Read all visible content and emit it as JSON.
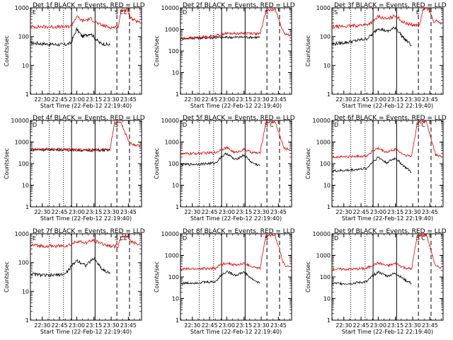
{
  "chart_data": [
    {
      "type": "line",
      "title": "Det 1f BLACK = Events, RED = LLD",
      "xlabel": "Start Time (22-Feb-12 22:19:40)",
      "ylabel": "Counts/sec",
      "ylim": [
        1,
        1000
      ],
      "yscale": "log",
      "x_ticks": [
        "22:30",
        "22:45",
        "23:00",
        "23:15",
        "23:30",
        "23:45"
      ],
      "annotations": [
        "E",
        "S",
        "E",
        "E"
      ],
      "series": [
        {
          "color": "#000000",
          "x": [
            "22:20",
            "22:35",
            "22:50",
            "22:55",
            "23:00",
            "23:05",
            "23:12",
            "23:20",
            "23:29"
          ],
          "y": [
            60,
            55,
            52,
            60,
            180,
            100,
            130,
            60,
            50
          ],
          "values": [
            60,
            55,
            52,
            60,
            180,
            100,
            130,
            60,
            50
          ]
        },
        {
          "color": "#e00000",
          "x": [
            "22:20",
            "22:35",
            "22:50",
            "22:55",
            "23:00",
            "23:05",
            "23:12",
            "23:20",
            "23:29",
            "23:36",
            "23:39",
            "23:44",
            "23:48",
            "23:55"
          ],
          "y": [
            220,
            220,
            215,
            230,
            500,
            350,
            420,
            260,
            210,
            210,
            850,
            850,
            400,
            300
          ],
          "values": [
            220,
            220,
            215,
            230,
            500,
            350,
            420,
            260,
            210,
            210,
            850,
            850,
            400,
            300
          ]
        }
      ]
    },
    {
      "type": "line",
      "title": "Det 2f BLACK = Events, RED = LLD",
      "xlabel": "Start Time (22-Feb-12 22:19:40)",
      "ylabel": "Counts/sec",
      "ylim": [
        1,
        10000
      ],
      "yscale": "log",
      "x_ticks": [
        "22:30",
        "22:45",
        "23:00",
        "23:15",
        "23:30",
        "23:45"
      ],
      "annotations": [
        "D",
        "S"
      ],
      "series": [
        {
          "color": "#000000",
          "x": [
            "22:20",
            "22:35",
            "22:50",
            "23:00",
            "23:15",
            "23:29"
          ],
          "y": [
            380,
            400,
            420,
            430,
            440,
            430
          ],
          "values": [
            380,
            400,
            420,
            430,
            440,
            430
          ]
        },
        {
          "color": "#e00000",
          "x": [
            "22:20",
            "22:35",
            "22:50",
            "22:58",
            "23:10",
            "23:20",
            "23:29",
            "23:34",
            "23:42",
            "23:50",
            "23:55"
          ],
          "y": [
            380,
            420,
            500,
            650,
            650,
            680,
            600,
            7000,
            9000,
            600,
            550
          ],
          "values": [
            380,
            420,
            500,
            650,
            650,
            680,
            600,
            7000,
            9000,
            600,
            550
          ]
        }
      ]
    },
    {
      "type": "line",
      "title": "Det 3f BLACK = Events, RED = LLD",
      "xlabel": "Start Time (22-Feb-12 22:19:40)",
      "ylabel": "Counts/sec",
      "ylim": [
        1,
        1000
      ],
      "yscale": "log",
      "x_ticks": [
        "22:30",
        "22:45",
        "23:00",
        "23:15",
        "23:30",
        "23:45"
      ],
      "annotations": [
        "S",
        "E"
      ],
      "series": [
        {
          "color": "#000000",
          "x": [
            "22:20",
            "22:35",
            "22:50",
            "22:55",
            "23:00",
            "23:08",
            "23:15",
            "23:22",
            "23:29"
          ],
          "y": [
            55,
            65,
            85,
            120,
            200,
            150,
            210,
            90,
            50
          ],
          "values": [
            55,
            65,
            85,
            120,
            200,
            150,
            210,
            90,
            50
          ]
        },
        {
          "color": "#e00000",
          "x": [
            "22:20",
            "22:35",
            "22:50",
            "22:55",
            "23:00",
            "23:08",
            "23:15",
            "23:22",
            "23:29",
            "23:36",
            "23:39",
            "23:44",
            "23:48",
            "23:55"
          ],
          "y": [
            220,
            230,
            260,
            320,
            500,
            400,
            550,
            310,
            260,
            240,
            900,
            900,
            350,
            300
          ],
          "values": [
            220,
            230,
            260,
            320,
            500,
            400,
            550,
            310,
            260,
            240,
            900,
            900,
            350,
            300
          ]
        }
      ]
    },
    {
      "type": "line",
      "title": "Det 4f BLACK = Events, RED = LLD",
      "xlabel": "Start Time (22-Feb-12 22:19:40)",
      "ylabel": "Counts/sec",
      "ylim": [
        1,
        10000
      ],
      "yscale": "log",
      "x_ticks": [
        "22:30",
        "22:45",
        "23:00",
        "23:15",
        "23:30",
        "23:45"
      ],
      "annotations": [
        "D",
        "S"
      ],
      "series": [
        {
          "color": "#000000",
          "x": [
            "22:20",
            "22:40",
            "23:00",
            "23:15",
            "23:29"
          ],
          "y": [
            430,
            450,
            420,
            410,
            420
          ],
          "values": [
            430,
            450,
            420,
            410,
            420
          ]
        },
        {
          "color": "#e00000",
          "x": [
            "22:20",
            "22:40",
            "23:00",
            "23:15",
            "23:29",
            "23:33",
            "23:38",
            "23:46",
            "23:50",
            "23:55"
          ],
          "y": [
            460,
            470,
            450,
            440,
            450,
            8000,
            9000,
            900,
            700,
            650
          ],
          "values": [
            460,
            470,
            450,
            440,
            450,
            8000,
            9000,
            900,
            700,
            650
          ]
        }
      ]
    },
    {
      "type": "line",
      "title": "Det 5f BLACK = Events, RED = LLD",
      "xlabel": "Start Time (22-Feb-12 22:19:40)",
      "ylabel": "Counts/sec",
      "ylim": [
        1,
        10000
      ],
      "yscale": "log",
      "x_ticks": [
        "22:30",
        "22:45",
        "23:00",
        "23:15",
        "23:30",
        "23:45"
      ],
      "annotations": [
        "D",
        "S",
        "C"
      ],
      "series": [
        {
          "color": "#000000",
          "x": [
            "22:20",
            "22:35",
            "22:50",
            "22:55",
            "23:00",
            "23:07",
            "23:15",
            "23:22",
            "23:29"
          ],
          "y": [
            90,
            95,
            105,
            200,
            300,
            150,
            250,
            110,
            80
          ],
          "values": [
            90,
            95,
            105,
            200,
            300,
            150,
            250,
            110,
            80
          ]
        },
        {
          "color": "#e00000",
          "x": [
            "22:20",
            "22:35",
            "22:50",
            "22:55",
            "23:00",
            "23:07",
            "23:15",
            "23:22",
            "23:29",
            "23:34",
            "23:42",
            "23:50",
            "23:55"
          ],
          "y": [
            280,
            300,
            320,
            450,
            550,
            320,
            450,
            330,
            300,
            8000,
            9000,
            500,
            450
          ],
          "values": [
            280,
            300,
            320,
            450,
            550,
            320,
            450,
            330,
            300,
            8000,
            9000,
            500,
            450
          ]
        }
      ]
    },
    {
      "type": "line",
      "title": "Det 6f BLACK = Events, RED = LLD",
      "xlabel": "Start Time (22-Feb-12 22:19:40)",
      "ylabel": "Counts/sec",
      "ylim": [
        1,
        10000
      ],
      "yscale": "log",
      "x_ticks": [
        "22:30",
        "22:45",
        "23:00",
        "23:15",
        "23:30",
        "23:45"
      ],
      "annotations": [
        "D",
        "S",
        "C"
      ],
      "series": [
        {
          "color": "#000000",
          "x": [
            "22:20",
            "22:35",
            "22:50",
            "22:55",
            "23:00",
            "23:07",
            "23:15",
            "23:22",
            "23:29"
          ],
          "y": [
            45,
            50,
            60,
            120,
            200,
            110,
            180,
            80,
            40
          ],
          "values": [
            45,
            50,
            60,
            120,
            200,
            110,
            180,
            80,
            40
          ]
        },
        {
          "color": "#e00000",
          "x": [
            "22:20",
            "22:35",
            "22:50",
            "22:55",
            "23:00",
            "23:07",
            "23:15",
            "23:22",
            "23:29",
            "23:34",
            "23:42",
            "23:50",
            "23:55"
          ],
          "y": [
            200,
            210,
            230,
            380,
            500,
            330,
            460,
            260,
            210,
            8000,
            9000,
            250,
            220
          ],
          "values": [
            200,
            210,
            230,
            380,
            500,
            330,
            460,
            260,
            210,
            8000,
            9000,
            250,
            220
          ]
        }
      ]
    },
    {
      "type": "line",
      "title": "Det 7f BLACK = Events, RED = LLD",
      "xlabel": "Start Time (22-Feb-12 22:19:40)",
      "ylabel": "Counts/sec",
      "ylim": [
        1,
        1000
      ],
      "yscale": "log",
      "x_ticks": [
        "22:30",
        "22:45",
        "23:00",
        "23:15",
        "23:30",
        "23:45"
      ],
      "annotations": [
        "E",
        "S",
        "C",
        "E"
      ],
      "series": [
        {
          "color": "#000000",
          "x": [
            "22:20",
            "22:35",
            "22:50",
            "22:55",
            "23:00",
            "23:08",
            "23:15",
            "23:22",
            "23:29"
          ],
          "y": [
            40,
            35,
            40,
            70,
            120,
            80,
            140,
            60,
            40
          ],
          "values": [
            40,
            35,
            40,
            70,
            120,
            80,
            140,
            60,
            40
          ]
        },
        {
          "color": "#e00000",
          "x": [
            "22:20",
            "22:35",
            "22:50",
            "22:55",
            "23:00",
            "23:08",
            "23:15",
            "23:22",
            "23:29",
            "23:36",
            "23:39",
            "23:44",
            "23:48",
            "23:55"
          ],
          "y": [
            400,
            370,
            380,
            420,
            550,
            480,
            600,
            450,
            380,
            360,
            800,
            850,
            500,
            450
          ],
          "values": [
            400,
            370,
            380,
            420,
            550,
            480,
            600,
            450,
            380,
            360,
            800,
            850,
            500,
            450
          ]
        }
      ]
    },
    {
      "type": "line",
      "title": "Det 8f BLACK = Events, RED = LLD",
      "xlabel": "Start Time (22-Feb-12 22:19:40)",
      "ylabel": "Counts/sec",
      "ylim": [
        1,
        10000
      ],
      "yscale": "log",
      "x_ticks": [
        "22:30",
        "22:45",
        "23:00",
        "23:15",
        "23:30",
        "23:45"
      ],
      "annotations": [
        "D",
        "S"
      ],
      "series": [
        {
          "color": "#000000",
          "x": [
            "22:20",
            "22:35",
            "22:50",
            "22:55",
            "23:00",
            "23:08",
            "23:15",
            "23:22",
            "23:29"
          ],
          "y": [
            50,
            55,
            60,
            120,
            180,
            120,
            170,
            80,
            50
          ],
          "values": [
            50,
            55,
            60,
            120,
            180,
            120,
            170,
            80,
            50
          ]
        },
        {
          "color": "#e00000",
          "x": [
            "22:20",
            "22:35",
            "22:50",
            "22:55",
            "23:00",
            "23:08",
            "23:15",
            "23:22",
            "23:29",
            "23:34",
            "23:42",
            "23:50",
            "23:55"
          ],
          "y": [
            230,
            240,
            250,
            380,
            450,
            350,
            420,
            300,
            240,
            8000,
            9000,
            350,
            300
          ],
          "values": [
            230,
            240,
            250,
            380,
            450,
            350,
            420,
            300,
            240,
            8000,
            9000,
            350,
            300
          ]
        }
      ]
    },
    {
      "type": "line",
      "title": "Det 9f BLACK = Events, RED = LLD",
      "xlabel": "Start Time (22-Feb-12 22:19:40)",
      "ylabel": "Counts/sec",
      "ylim": [
        1,
        10000
      ],
      "yscale": "log",
      "x_ticks": [
        "22:30",
        "22:45",
        "23:00",
        "23:15",
        "23:30",
        "23:45"
      ],
      "annotations": [
        "D",
        "S",
        "C"
      ],
      "series": [
        {
          "color": "#000000",
          "x": [
            "22:20",
            "22:35",
            "22:50",
            "22:55",
            "23:00",
            "23:08",
            "23:15",
            "23:22",
            "23:29"
          ],
          "y": [
            50,
            50,
            60,
            110,
            170,
            110,
            150,
            80,
            50
          ],
          "values": [
            50,
            50,
            60,
            110,
            170,
            110,
            150,
            80,
            50
          ]
        },
        {
          "color": "#e00000",
          "x": [
            "22:20",
            "22:35",
            "22:50",
            "22:55",
            "23:00",
            "23:08",
            "23:15",
            "23:22",
            "23:29",
            "23:34",
            "23:42",
            "23:50",
            "23:55"
          ],
          "y": [
            230,
            230,
            250,
            350,
            450,
            330,
            420,
            280,
            230,
            8000,
            9000,
            300,
            280
          ],
          "values": [
            230,
            230,
            250,
            350,
            450,
            330,
            420,
            280,
            230,
            8000,
            9000,
            300,
            280
          ]
        }
      ]
    }
  ]
}
